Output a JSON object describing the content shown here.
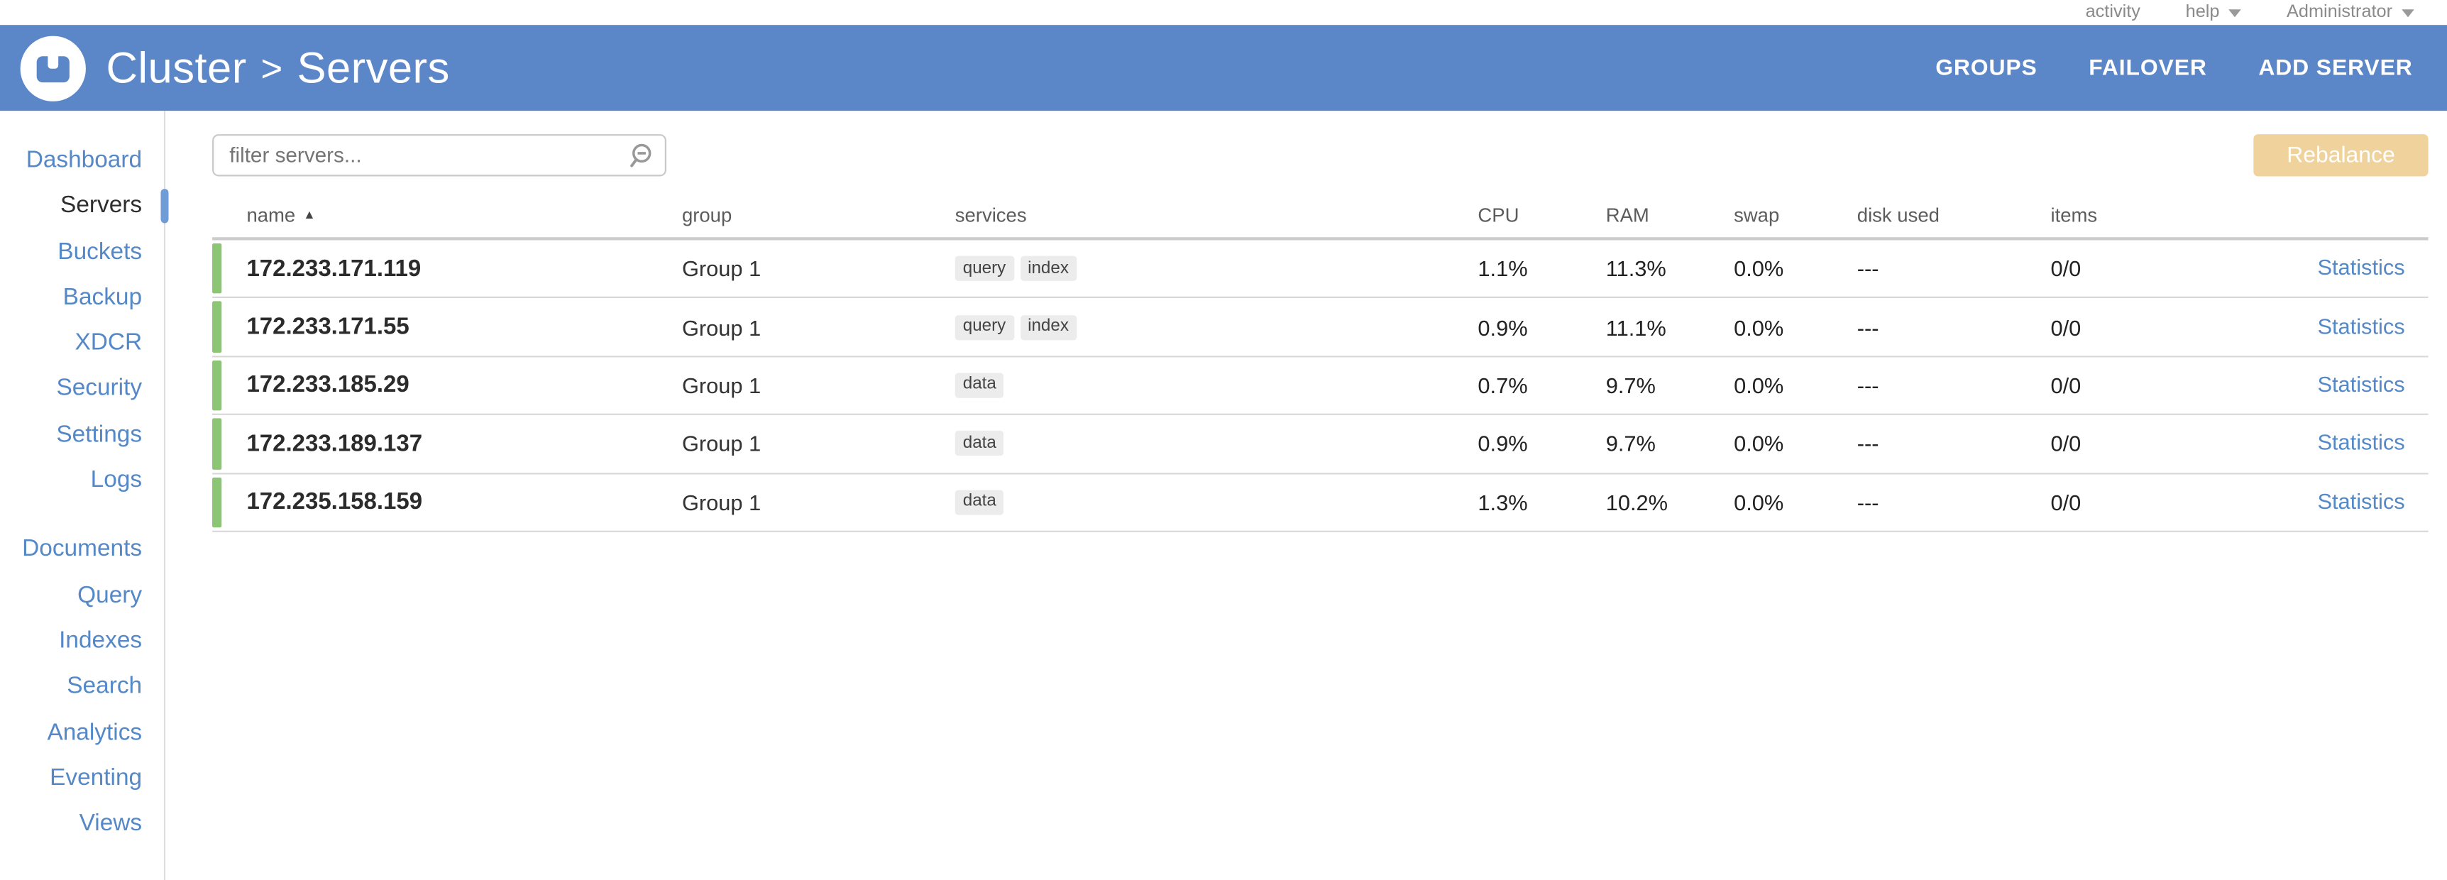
{
  "colors": {
    "header_blue": "#5b87c9",
    "status_green": "#8cc573",
    "rebalance_wheat": "#f0d39c",
    "link_blue": "#5488c7"
  },
  "utility_bar": {
    "items": [
      {
        "label": "activity",
        "has_caret": false
      },
      {
        "label": "help",
        "has_caret": true
      },
      {
        "label": "Administrator",
        "has_caret": true
      }
    ]
  },
  "header": {
    "breadcrumb": {
      "section": "Cluster",
      "separator": ">",
      "page": "Servers"
    },
    "actions": [
      "GROUPS",
      "FAILOVER",
      "ADD SERVER"
    ]
  },
  "sidebar": {
    "primary": [
      {
        "label": "Dashboard",
        "active": false
      },
      {
        "label": "Servers",
        "active": true
      },
      {
        "label": "Buckets",
        "active": false
      },
      {
        "label": "Backup",
        "active": false
      },
      {
        "label": "XDCR",
        "active": false
      },
      {
        "label": "Security",
        "active": false
      },
      {
        "label": "Settings",
        "active": false
      },
      {
        "label": "Logs",
        "active": false
      }
    ],
    "secondary": [
      {
        "label": "Documents",
        "active": false
      },
      {
        "label": "Query",
        "active": false
      },
      {
        "label": "Indexes",
        "active": false
      },
      {
        "label": "Search",
        "active": false
      },
      {
        "label": "Analytics",
        "active": false
      },
      {
        "label": "Eventing",
        "active": false
      },
      {
        "label": "Views",
        "active": false
      }
    ]
  },
  "toolbar": {
    "filter_placeholder": "filter servers...",
    "rebalance_label": "Rebalance"
  },
  "table": {
    "headers": {
      "name": "name",
      "sort_indicator": "▲",
      "group": "group",
      "services": "services",
      "cpu": "CPU",
      "ram": "RAM",
      "swap": "swap",
      "disk": "disk used",
      "items": "items"
    },
    "rows": [
      {
        "name": "172.233.171.119",
        "group": "Group 1",
        "services": [
          "query",
          "index"
        ],
        "cpu": "1.1%",
        "ram": "11.3%",
        "swap": "0.0%",
        "disk_used": "---",
        "items": "0/0",
        "link": "Statistics"
      },
      {
        "name": "172.233.171.55",
        "group": "Group 1",
        "services": [
          "query",
          "index"
        ],
        "cpu": "0.9%",
        "ram": "11.1%",
        "swap": "0.0%",
        "disk_used": "---",
        "items": "0/0",
        "link": "Statistics"
      },
      {
        "name": "172.233.185.29",
        "group": "Group 1",
        "services": [
          "data"
        ],
        "cpu": "0.7%",
        "ram": "9.7%",
        "swap": "0.0%",
        "disk_used": "---",
        "items": "0/0",
        "link": "Statistics"
      },
      {
        "name": "172.233.189.137",
        "group": "Group 1",
        "services": [
          "data"
        ],
        "cpu": "0.9%",
        "ram": "9.7%",
        "swap": "0.0%",
        "disk_used": "---",
        "items": "0/0",
        "link": "Statistics"
      },
      {
        "name": "172.235.158.159",
        "group": "Group 1",
        "services": [
          "data"
        ],
        "cpu": "1.3%",
        "ram": "10.2%",
        "swap": "0.0%",
        "disk_used": "---",
        "items": "0/0",
        "link": "Statistics"
      }
    ]
  }
}
